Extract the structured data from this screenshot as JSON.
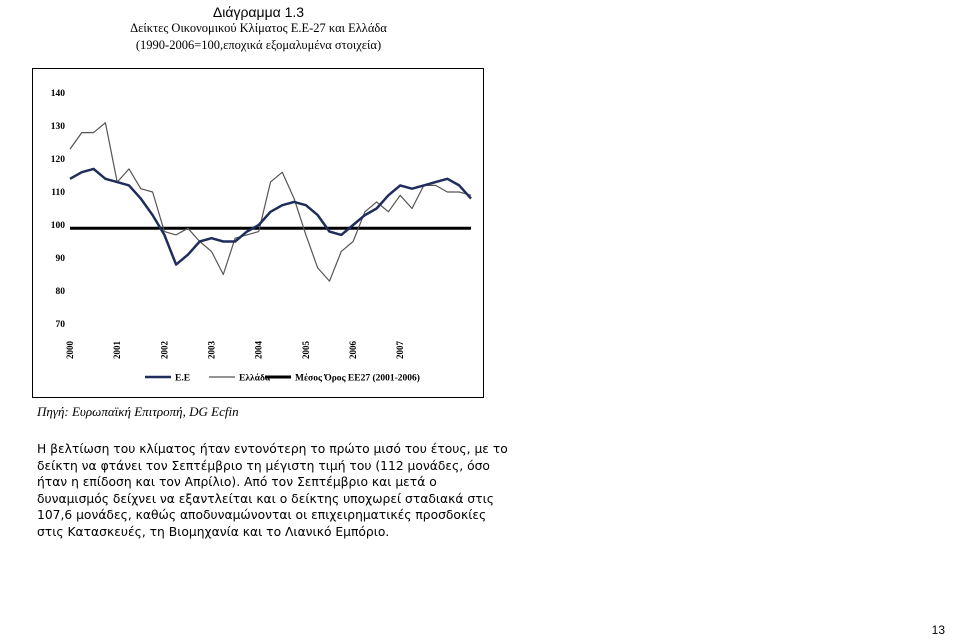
{
  "page": {
    "diagram_label": "Διάγραμμα 1.3",
    "source_note": "Πηγή: Ευρωπαϊκή Επιτροπή, DG Ecfin",
    "body_lines": [
      "Η βελτίωση του κλίματος ήταν εντονότερη το πρώτο μισό του έτους, με το",
      "δείκτη να φτάνει τον Σεπτέμβριο τη μέγιστη τιμή του (112 μονάδες, όσο",
      "ήταν η επίδοση και τον Απρίλιο). Από τον Σεπτέμβριο και μετά ο",
      "δυναμισμός δείχνει να εξαντλείται και ο δείκτης υποχωρεί σταδιακά στις",
      "107,6 μονάδες, καθώς αποδυναμώνονται οι επιχειρηματικές προσδοκίες",
      "στις Κατασκευές, τη Βιομηχανία και το Λιανικό Εμπόριο."
    ],
    "page_number": "13"
  },
  "chart_data": {
    "type": "line",
    "title": "Δείκτες Οικονομικού Κλίματος Ε.Ε-27 και Ελλάδα",
    "subtitle": "(1990-2006=100,εποχικά εξομαλυμένα στοιχεία)",
    "xlabel": "",
    "ylabel": "",
    "ylim": [
      70,
      140
    ],
    "yticks": [
      70,
      80,
      90,
      100,
      110,
      120,
      130,
      140
    ],
    "xticks": [
      "2000",
      "2001",
      "2002",
      "2003",
      "2004",
      "2005",
      "2006",
      "2007"
    ],
    "x": [
      "2000-01",
      "2000-04",
      "2000-07",
      "2000-10",
      "2001-01",
      "2001-04",
      "2001-07",
      "2001-10",
      "2002-01",
      "2002-04",
      "2002-07",
      "2002-10",
      "2003-01",
      "2003-04",
      "2003-07",
      "2003-10",
      "2004-01",
      "2004-04",
      "2004-07",
      "2004-10",
      "2005-01",
      "2005-04",
      "2005-07",
      "2005-10",
      "2006-01",
      "2006-04",
      "2006-07",
      "2006-10",
      "2007-01",
      "2007-04",
      "2007-07",
      "2007-10",
      "2008-01",
      "2008-04",
      "2008-07"
    ],
    "grid": false,
    "legend_position": "bottom",
    "series": [
      {
        "name": "Ε.Ε",
        "color": "#1f2d5c",
        "width": 2.5,
        "values": [
          114,
          116,
          117,
          114,
          113,
          112,
          108,
          103,
          97,
          88,
          91,
          95,
          96,
          95,
          95,
          98,
          100,
          104,
          106,
          107,
          106,
          103,
          98,
          97,
          100,
          103,
          105,
          109,
          112,
          111,
          112,
          113,
          114,
          112,
          108
        ]
      },
      {
        "name": "Ελλάδα",
        "color": "#555555",
        "width": 1.2,
        "values": [
          123,
          128,
          128,
          131,
          113,
          117,
          111,
          110,
          98,
          97,
          99,
          95,
          92,
          85,
          96,
          97,
          98,
          113,
          116,
          108,
          97,
          87,
          83,
          92,
          95,
          104,
          107,
          104,
          109,
          105,
          112,
          112,
          110,
          110,
          109
        ]
      },
      {
        "name": "Μέσος Όρος ΕΕ27 (2001-2006)",
        "color": "#000000",
        "width": 3,
        "values": [
          99,
          99,
          99,
          99,
          99,
          99,
          99,
          99,
          99,
          99,
          99,
          99,
          99,
          99,
          99,
          99,
          99,
          99,
          99,
          99,
          99,
          99,
          99,
          99,
          99,
          99,
          99,
          99,
          99,
          99,
          99,
          99,
          99,
          99,
          99
        ]
      }
    ]
  }
}
